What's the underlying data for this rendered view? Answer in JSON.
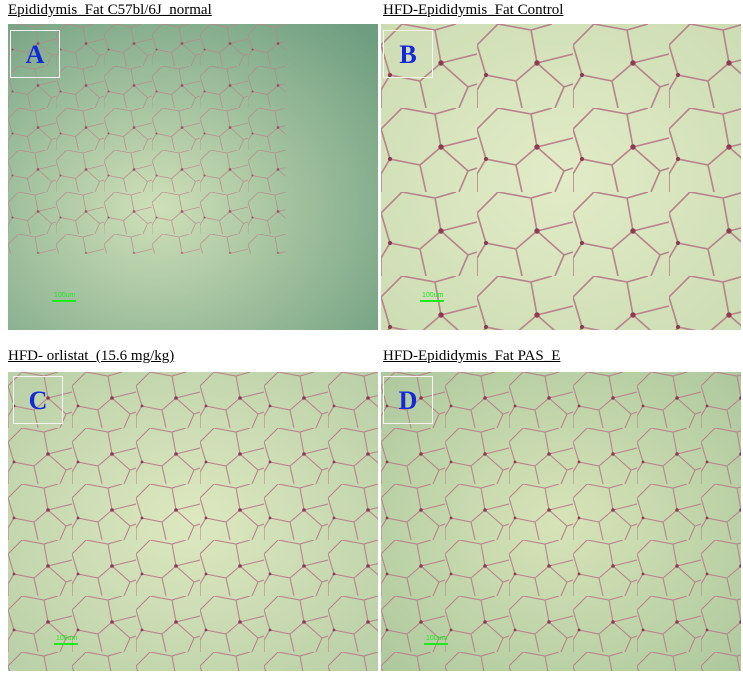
{
  "panels": [
    {
      "title": "Epididymis_Fat C57bl/6J_normal",
      "label": "A",
      "scale_bar": "100um"
    },
    {
      "title": "HFD-Epididymis_Fat Control",
      "label": "B",
      "scale_bar": "100um"
    },
    {
      "title": "HFD- orlistat  (15.6 mg/kg)",
      "label": "C",
      "scale_bar": "100um"
    },
    {
      "title": "HFD-Epididymis_Fat PAS_E",
      "label": "D",
      "scale_bar": "100um"
    }
  ]
}
